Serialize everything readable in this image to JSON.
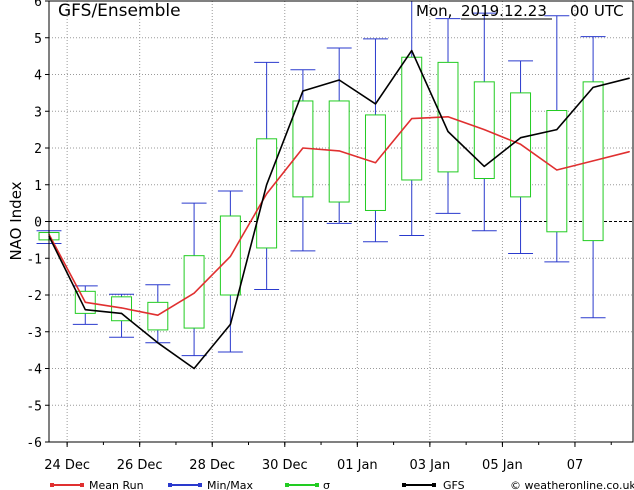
{
  "header": {
    "model": "GFS/Ensemble",
    "day": "Mon,",
    "date": "2019.12.23",
    "run": "00 UTC"
  },
  "legend": {
    "mean": "Mean Run",
    "minmax": "Min/Max",
    "sigma": "σ",
    "gfs": "GFS",
    "credit": "© weatheronline.co.uk"
  },
  "colors": {
    "mean": "#e03030",
    "minmax": "#2a3acd",
    "sigma": "#22cc22",
    "gfs": "#000000",
    "grid": "#9a9a9a"
  },
  "chart_data": {
    "type": "line",
    "ylabel": "NAO Index",
    "ylim": [
      -6,
      6
    ],
    "yticks": [
      -6,
      -5,
      -4,
      -3,
      -2,
      -1,
      0,
      1,
      2,
      3,
      4,
      5,
      6
    ],
    "xlim": [
      -0.25,
      7.8
    ],
    "xticks": [
      {
        "x": 0,
        "label": "24 Dec"
      },
      {
        "x": 1,
        "label": "26 Dec"
      },
      {
        "x": 2,
        "label": "28 Dec"
      },
      {
        "x": 3,
        "label": "30 Dec"
      },
      {
        "x": 4,
        "label": "01 Jan"
      },
      {
        "x": 5,
        "label": "03 Jan"
      },
      {
        "x": 6,
        "label": "05 Jan"
      },
      {
        "x": 7,
        "label": "07"
      }
    ],
    "x": [
      -0.25,
      0.25,
      0.75,
      1.25,
      1.75,
      2.25,
      2.75,
      3.25,
      3.75,
      4.25,
      4.75,
      5.25,
      5.75,
      6.25,
      6.75,
      7.25,
      7.75
    ],
    "series": [
      {
        "name": "Mean Run",
        "key": "mean",
        "values": [
          -0.35,
          -2.2,
          -2.35,
          -2.55,
          -1.95,
          -0.95,
          0.75,
          2.0,
          1.92,
          1.6,
          2.8,
          2.85,
          2.5,
          2.1,
          1.4,
          1.65,
          1.9
        ]
      },
      {
        "name": "GFS",
        "key": "gfs",
        "values": [
          -0.4,
          -2.4,
          -2.5,
          -3.3,
          -4.0,
          -2.8,
          1.0,
          3.55,
          3.85,
          3.2,
          4.65,
          2.45,
          1.5,
          2.28,
          2.5,
          3.65,
          3.9
        ]
      }
    ],
    "boxes": [
      {
        "min": -0.6,
        "max": -0.25,
        "lo": -0.5,
        "hi": -0.3
      },
      {
        "min": -2.8,
        "max": -1.75,
        "lo": -2.5,
        "hi": -1.9
      },
      {
        "min": -3.15,
        "max": -1.98,
        "lo": -2.7,
        "hi": -2.05
      },
      {
        "min": -3.3,
        "max": -1.72,
        "lo": -2.95,
        "hi": -2.2
      },
      {
        "min": -3.65,
        "max": 0.5,
        "lo": -2.9,
        "hi": -0.93
      },
      {
        "min": -3.55,
        "max": 0.83,
        "lo": -2.0,
        "hi": 0.15
      },
      {
        "min": -1.85,
        "max": 4.33,
        "lo": -0.72,
        "hi": 2.25
      },
      {
        "min": -0.8,
        "max": 4.13,
        "lo": 0.67,
        "hi": 3.28
      },
      {
        "min": -0.05,
        "max": 4.72,
        "lo": 0.53,
        "hi": 3.28
      },
      {
        "min": -0.55,
        "max": 4.97,
        "lo": 0.3,
        "hi": 2.9
      },
      {
        "min": -0.38,
        "max": 6.0,
        "lo": 1.13,
        "hi": 4.47
      },
      {
        "min": 0.22,
        "max": 5.52,
        "lo": 1.35,
        "hi": 4.33
      },
      {
        "min": -0.25,
        "max": 5.67,
        "lo": 1.17,
        "hi": 3.8
      },
      {
        "min": -0.87,
        "max": 4.37,
        "lo": 0.67,
        "hi": 3.5
      },
      {
        "min": -1.1,
        "max": 5.6,
        "lo": -0.28,
        "hi": 3.02
      },
      {
        "min": -2.62,
        "max": 5.03,
        "lo": -0.52,
        "hi": 3.8
      }
    ],
    "grid": true,
    "legend_position": "bottom"
  }
}
